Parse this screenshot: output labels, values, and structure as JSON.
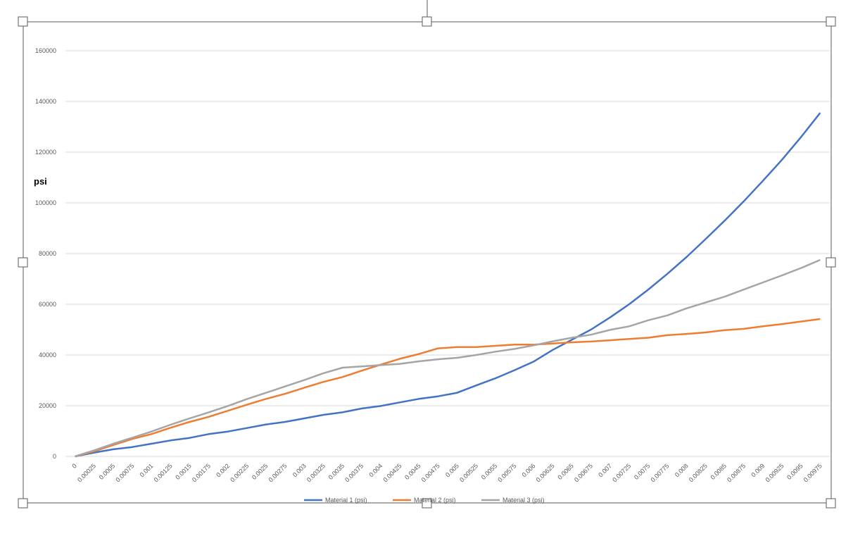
{
  "chart_data": {
    "type": "line",
    "y_label": "psi",
    "categories": [
      "0",
      "0.00025",
      "0.0005",
      "0.00075",
      "0.001",
      "0.00125",
      "0.0015",
      "0.00175",
      "0.002",
      "0.00225",
      "0.0025",
      "0.00275",
      "0.003",
      "0.00325",
      "0.0035",
      "0.00375",
      "0.004",
      "0.00425",
      "0.0045",
      "0.00475",
      "0.005",
      "0.00525",
      "0.0055",
      "0.00575",
      "0.006",
      "0.00625",
      "0.0065",
      "0.00675",
      "0.007",
      "0.00725",
      "0.0075",
      "0.00775",
      "0.008",
      "0.00825",
      "0.0085",
      "0.00875",
      "0.009",
      "0.00925",
      "0.0095",
      "0.00975"
    ],
    "series": [
      {
        "name": "Material 1 (psi)",
        "color": "#4472c4",
        "values": [
          0,
          1500,
          2800,
          3700,
          5000,
          6300,
          7300,
          8800,
          9800,
          11200,
          12600,
          13600,
          15000,
          16400,
          17400,
          18900,
          19900,
          21300,
          22700,
          23700,
          25100,
          28000,
          30800,
          34000,
          37400,
          42000,
          46000,
          50000,
          54800,
          60000,
          65800,
          72000,
          78600,
          85700,
          93000,
          100600,
          108700,
          117000,
          126000,
          135500
        ]
      },
      {
        "name": "Material 2 (psi)",
        "color": "#ed7d31",
        "values": [
          0,
          2000,
          4500,
          6900,
          8800,
          11300,
          13600,
          15600,
          18000,
          20400,
          22700,
          24700,
          27100,
          29400,
          31300,
          33800,
          36200,
          38500,
          40400,
          42600,
          43100,
          43100,
          43600,
          44100,
          44100,
          44500,
          45000,
          45300,
          45800,
          46300,
          46800,
          47800,
          48300,
          48900,
          49800,
          50300,
          51300,
          52200,
          53200,
          54200
        ]
      },
      {
        "name": "Material 3 (psi)",
        "color": "#a5a5a5",
        "values": [
          0,
          2400,
          5000,
          7400,
          9800,
          12500,
          15000,
          17400,
          19900,
          22600,
          25100,
          27600,
          30100,
          32800,
          35000,
          35500,
          36000,
          36500,
          37500,
          38300,
          38900,
          40000,
          41300,
          42400,
          43800,
          45400,
          46800,
          48000,
          49900,
          51300,
          53700,
          55600,
          58400,
          60700,
          63000,
          65800,
          68600,
          71400,
          74300,
          77500
        ]
      }
    ],
    "ylim": [
      0,
      160000
    ],
    "yticks": [
      0,
      20000,
      40000,
      60000,
      80000,
      100000,
      120000,
      140000,
      160000
    ],
    "grid": true
  }
}
